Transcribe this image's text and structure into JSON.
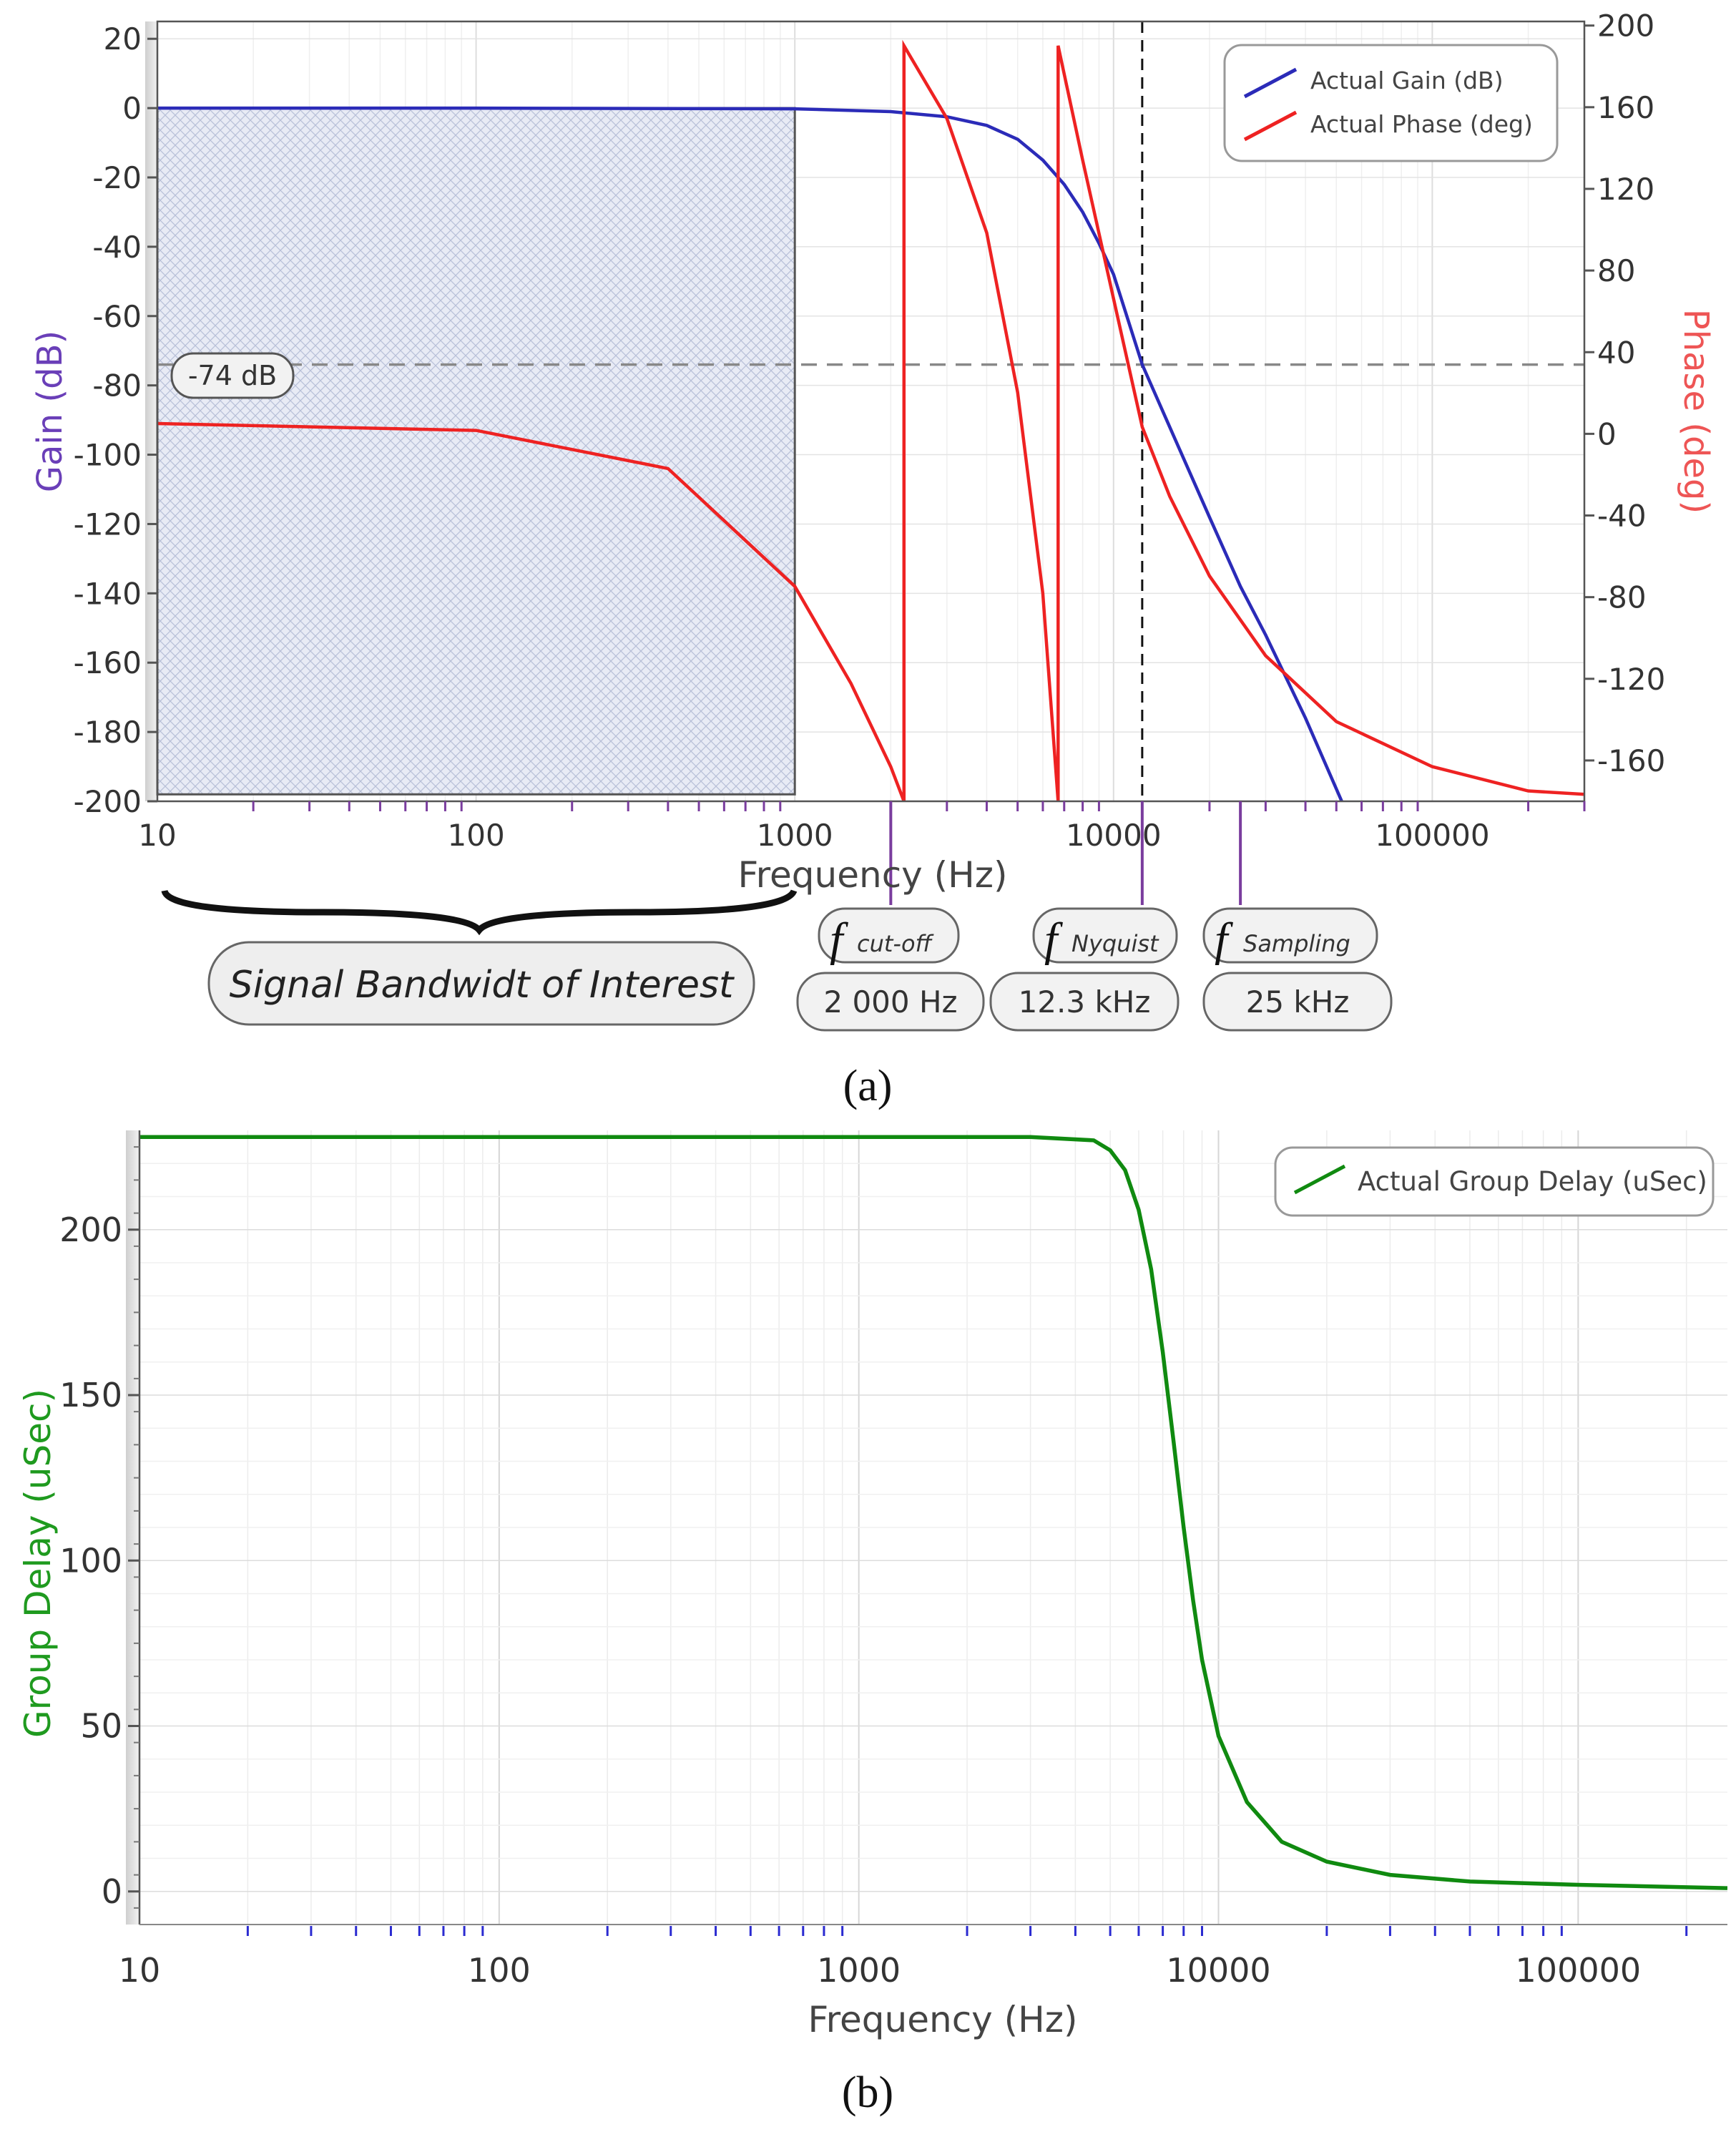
{
  "chart_data": [
    {
      "panel": "(a)",
      "type": "line",
      "xlabel": "Frequency (Hz)",
      "xscale": "log",
      "xlim": [
        10,
        300000
      ],
      "x_ticks": [
        "10",
        "100",
        "1000",
        "10000",
        "100000"
      ],
      "ylabel_left": "Gain (dB)",
      "ylim_left": [
        -200,
        25
      ],
      "y_ticks_left": [
        "20",
        "0",
        "-20",
        "-40",
        "-60",
        "-80",
        "-100",
        "-120",
        "-140",
        "-160",
        "-180",
        "-200"
      ],
      "ylabel_right": "Phase (deg)",
      "ylim_right": [
        -180,
        202
      ],
      "y_ticks_right": [
        "200",
        "160",
        "120",
        "80",
        "40",
        "0",
        "-40",
        "-80",
        "-120",
        "-160"
      ],
      "legend": [
        "Actual Gain (dB)",
        "Actual Phase (deg)"
      ],
      "legend_position": "top-right",
      "colors": {
        "gain": "#2b2bb8",
        "phase": "#ee2222",
        "guide": "#8a8a8a",
        "marker": "#7a3d9e",
        "band_fill": "#e6e9f4"
      },
      "series": [
        {
          "name": "Actual Gain (dB)",
          "axis": "left",
          "x": [
            10,
            100,
            1000,
            2000,
            3000,
            4000,
            5000,
            6000,
            7000,
            8000,
            9000,
            10000,
            12300,
            15000,
            20000,
            25000,
            30000,
            40000,
            52000
          ],
          "y": [
            0,
            0,
            -0.2,
            -1,
            -2.5,
            -5,
            -9,
            -15,
            -22,
            -30,
            -39,
            -48,
            -74,
            -92,
            -118,
            -138,
            -152,
            -176,
            -200
          ]
        },
        {
          "name": "Actual Phase (deg)",
          "axis": "left",
          "x": [
            10,
            100,
            400,
            1000,
            1500,
            2000,
            2200,
            2200,
            3000,
            4000,
            5000,
            6000,
            6700,
            6700,
            8000,
            10000,
            12300,
            15000,
            20000,
            30000,
            50000,
            100000,
            200000,
            300000
          ],
          "y": [
            -91,
            -93,
            -104,
            -138,
            -166,
            -190,
            -200,
            18,
            -3,
            -36,
            -82,
            -140,
            -200,
            18,
            -15,
            -55,
            -92,
            -112,
            -135,
            -158,
            -177,
            -190,
            -197,
            -198
          ]
        }
      ],
      "annotations": {
        "gain_marker": "-74 dB",
        "nyquist_frequency_hz": 12300,
        "cutoff_frequency_hz": 2000,
        "sampling_frequency_hz": 25000,
        "band_of_interest_hz": [
          10,
          1000
        ],
        "band_label": "Signal Bandwidt of Interest",
        "fcut": {
          "f": "f",
          "sub": "cut-off",
          "value": "2 000 Hz"
        },
        "fnyq": {
          "f": "f",
          "sub": "Nyquist",
          "value": "12.3 kHz"
        },
        "fsamp": {
          "f": "f",
          "sub": "Sampling",
          "value": "25 kHz"
        }
      }
    },
    {
      "panel": "(b)",
      "type": "line",
      "xlabel": "Frequency (Hz)",
      "xscale": "log",
      "xlim": [
        10,
        260000
      ],
      "x_ticks": [
        "10",
        "100",
        "1000",
        "10000",
        "100000"
      ],
      "ylabel": "Group Delay (uSec)",
      "ylim": [
        -10,
        230
      ],
      "y_ticks": [
        "200",
        "150",
        "100",
        "50",
        "0"
      ],
      "legend": [
        "Actual Group Delay (uSec)"
      ],
      "legend_position": "top-right",
      "colors": {
        "line": "#108a10"
      },
      "series": [
        {
          "name": "Actual Group Delay (uSec)",
          "x": [
            10,
            100,
            1000,
            3000,
            4500,
            5000,
            5500,
            6000,
            6500,
            7000,
            7500,
            8000,
            8500,
            9000,
            10000,
            12000,
            15000,
            20000,
            30000,
            50000,
            100000,
            260000
          ],
          "y": [
            228,
            228,
            228,
            228,
            227,
            224,
            218,
            206,
            188,
            163,
            136,
            110,
            88,
            70,
            47,
            27,
            15,
            9,
            5,
            3,
            2,
            1
          ]
        }
      ]
    }
  ],
  "panel_labels": {
    "a": "(a)",
    "b": "(b)"
  }
}
